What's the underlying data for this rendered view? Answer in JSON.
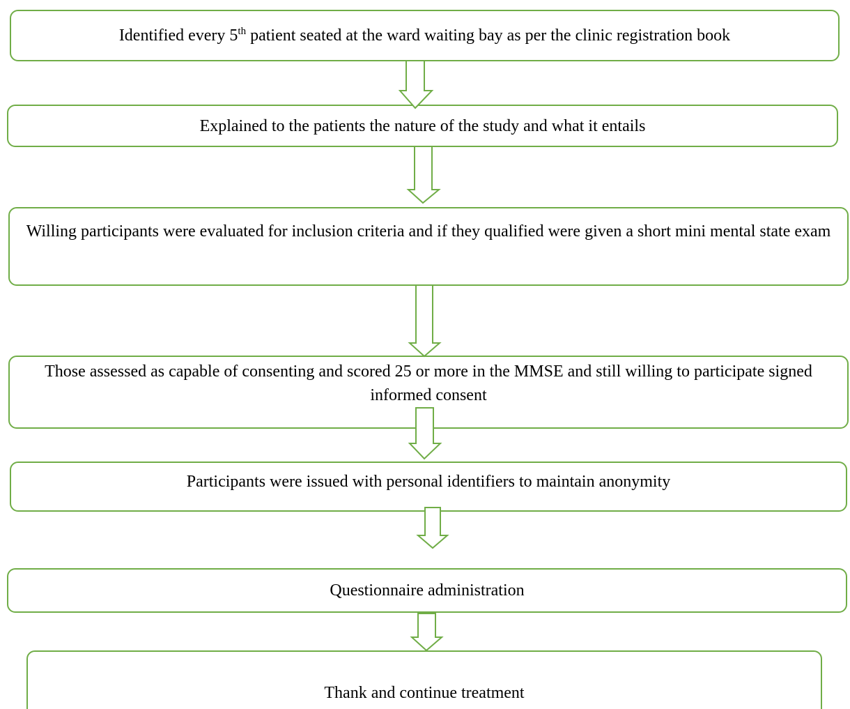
{
  "nodes": [
    {
      "label": {
        "before": "Identified every 5",
        "superscript": "th",
        "after": " patient seated at the ward waiting bay as per the clinic registration book"
      }
    },
    {
      "label": "Explained to the patients the nature of the study and what it entails"
    },
    {
      "label": "Willing participants were evaluated for inclusion criteria and if they qualified were given a short mini mental state exam"
    },
    {
      "label": "Those assessed as capable of consenting and scored 25 or more in the MMSE and still willing to participate signed informed consent"
    },
    {
      "label": "Participants were issued with personal identifiers to maintain anonymity"
    },
    {
      "label": "Questionnaire administration"
    },
    {
      "label": "Thank and continue treatment"
    }
  ]
}
